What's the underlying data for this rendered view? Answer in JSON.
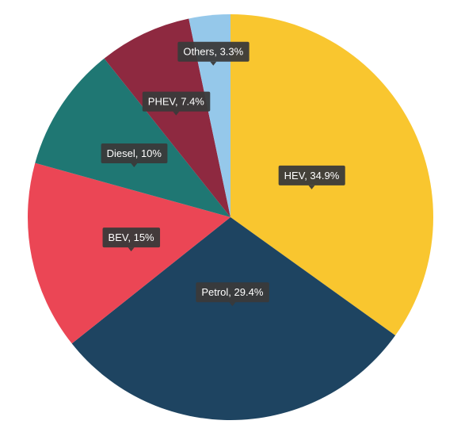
{
  "chart_data": {
    "type": "pie",
    "title": "",
    "slices": [
      {
        "label": "HEV",
        "value": 34.9,
        "display": "HEV, 34.9%",
        "color": "#F9C62F"
      },
      {
        "label": "Petrol",
        "value": 29.4,
        "display": "Petrol, 29.4%",
        "color": "#1E4461"
      },
      {
        "label": "BEV",
        "value": 15,
        "display": "BEV, 15%",
        "color": "#EB4655"
      },
      {
        "label": "Diesel",
        "value": 10,
        "display": "Diesel, 10%",
        "color": "#1F7773"
      },
      {
        "label": "PHEV",
        "value": 7.4,
        "display": "PHEV, 7.4%",
        "color": "#8E2940"
      },
      {
        "label": "Others",
        "value": 3.3,
        "display": "Others, 3.3%",
        "color": "#95C8EA"
      }
    ],
    "start_angle": "12 o'clock",
    "direction": "clockwise",
    "legend": "none",
    "data_labels": "tooltip-style dark boxes on each slice"
  }
}
